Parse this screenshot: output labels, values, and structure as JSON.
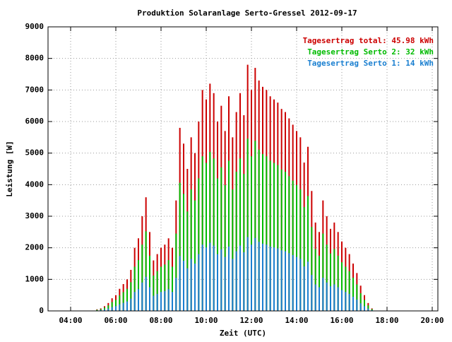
{
  "chart_data": {
    "type": "bar",
    "title": "Produktion Solaranlage Serto-Gressel 2012-09-17",
    "xlabel": "Zeit (UTC)",
    "ylabel": "Leistung [W]",
    "xlim": [
      180,
      1215
    ],
    "ylim": [
      0,
      9000
    ],
    "xticks": [
      {
        "value": 240,
        "label": "04:00"
      },
      {
        "value": 360,
        "label": "06:00"
      },
      {
        "value": 480,
        "label": "08:00"
      },
      {
        "value": 600,
        "label": "10:00"
      },
      {
        "value": 720,
        "label": "12:00"
      },
      {
        "value": 840,
        "label": "14:00"
      },
      {
        "value": 960,
        "label": "16:00"
      },
      {
        "value": 1080,
        "label": "18:00"
      },
      {
        "value": 1200,
        "label": "20:00"
      }
    ],
    "yticks": [
      0,
      1000,
      2000,
      3000,
      4000,
      5000,
      6000,
      7000,
      8000,
      9000
    ],
    "grid": true,
    "legend": "top-right",
    "x": [
      310,
      320,
      330,
      340,
      350,
      360,
      370,
      380,
      390,
      400,
      410,
      420,
      430,
      440,
      450,
      460,
      470,
      480,
      490,
      500,
      510,
      520,
      530,
      540,
      550,
      560,
      570,
      580,
      590,
      600,
      610,
      620,
      630,
      640,
      650,
      660,
      670,
      680,
      690,
      700,
      710,
      720,
      730,
      740,
      750,
      760,
      770,
      780,
      790,
      800,
      810,
      820,
      830,
      840,
      850,
      860,
      870,
      880,
      890,
      900,
      910,
      920,
      930,
      940,
      950,
      960,
      970,
      980,
      990,
      1000,
      1010,
      1020,
      1030,
      1040
    ],
    "series": [
      {
        "name": "Tagesertrag total: 45.98 kWh",
        "color": "#cc0000",
        "values": [
          50,
          80,
          150,
          250,
          400,
          500,
          700,
          850,
          1000,
          1300,
          2000,
          2300,
          3000,
          3600,
          2500,
          1600,
          1800,
          2000,
          2100,
          2300,
          2000,
          3500,
          5800,
          5300,
          4500,
          5500,
          5000,
          6000,
          7000,
          6700,
          7200,
          6900,
          6000,
          6500,
          5700,
          6800,
          5500,
          6300,
          6900,
          6200,
          7800,
          7000,
          7700,
          7300,
          7100,
          7000,
          6800,
          6700,
          6600,
          6400,
          6300,
          6100,
          5900,
          5700,
          5500,
          4700,
          5200,
          3800,
          2800,
          2500,
          3500,
          3000,
          2600,
          2800,
          2500,
          2200,
          2000,
          1800,
          1500,
          1200,
          800,
          500,
          250,
          80
        ]
      },
      {
        "name": "Tagesertrag Serto 2: 32 kWh",
        "color": "#00bb00",
        "values": [
          35,
          55,
          105,
          175,
          280,
          350,
          490,
          595,
          700,
          910,
          1400,
          1610,
          2100,
          2520,
          1750,
          1120,
          1260,
          1400,
          1470,
          1610,
          1400,
          2450,
          4060,
          3710,
          3150,
          3850,
          3500,
          4200,
          4900,
          4690,
          5040,
          4830,
          4200,
          4550,
          3990,
          4760,
          3850,
          4410,
          4830,
          4340,
          5460,
          4900,
          5390,
          5110,
          4970,
          4900,
          4760,
          4690,
          4620,
          4480,
          4410,
          4270,
          4130,
          3990,
          3850,
          3290,
          3640,
          2660,
          1960,
          1750,
          2450,
          2100,
          1820,
          1960,
          1750,
          1540,
          1400,
          1260,
          1050,
          840,
          560,
          350,
          175,
          56
        ]
      },
      {
        "name": "Tagesertrag Serto 1: 14 kWh",
        "color": "#1a7fd0",
        "values": [
          15,
          25,
          45,
          75,
          120,
          150,
          210,
          255,
          300,
          390,
          600,
          690,
          900,
          1080,
          750,
          480,
          540,
          600,
          630,
          690,
          600,
          1050,
          1740,
          1590,
          1350,
          1650,
          1500,
          1800,
          2100,
          2010,
          2160,
          2070,
          1800,
          1950,
          1710,
          2040,
          1650,
          1890,
          2070,
          1860,
          2340,
          2100,
          2310,
          2190,
          2130,
          2100,
          2040,
          2010,
          1980,
          1920,
          1890,
          1830,
          1770,
          1710,
          1650,
          1410,
          1560,
          1140,
          840,
          750,
          1050,
          900,
          780,
          840,
          750,
          660,
          600,
          540,
          450,
          360,
          240,
          150,
          75,
          24
        ]
      }
    ]
  }
}
